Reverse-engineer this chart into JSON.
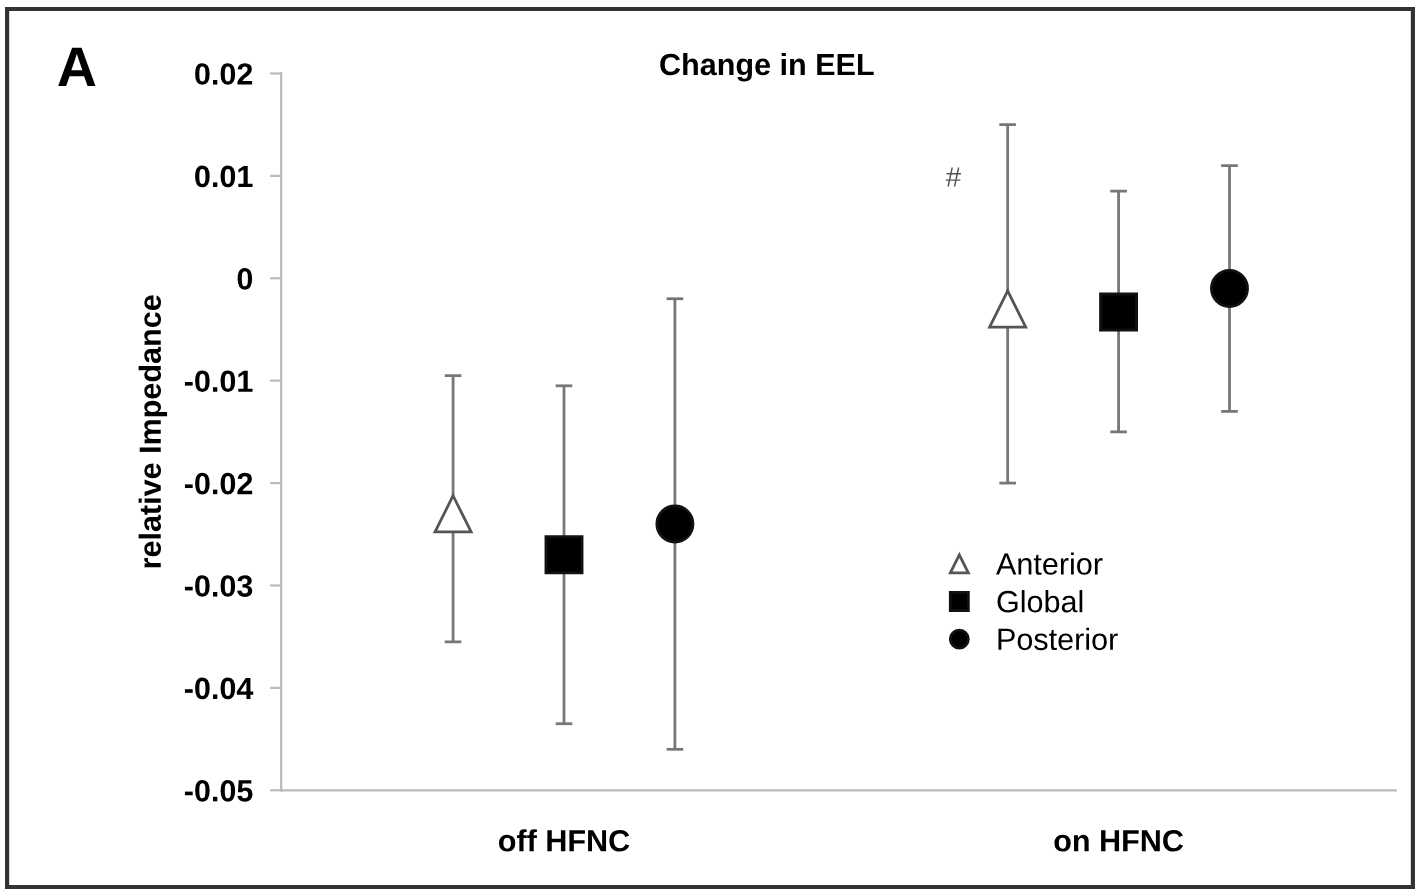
{
  "chart_data": {
    "type": "scatter",
    "title": "Change in EEL",
    "ylabel": "relative Impedance",
    "categories": [
      "off HFNC",
      "on HFNC"
    ],
    "series": [
      {
        "name": "Anterior",
        "color": "#ffffff",
        "marker": "triangle",
        "values": [
          -0.023,
          -0.003
        ],
        "errors": [
          [
            -0.0355,
            -0.0095
          ],
          [
            -0.02,
            0.015
          ]
        ]
      },
      {
        "name": "Global",
        "color": "#000000",
        "marker": "square",
        "values": [
          -0.027,
          -0.0033
        ],
        "errors": [
          [
            -0.0435,
            -0.0105
          ],
          [
            -0.015,
            0.0085
          ]
        ]
      },
      {
        "name": "Posterior",
        "color": "#000000",
        "marker": "circle",
        "values": [
          -0.024,
          -0.001
        ],
        "errors": [
          [
            -0.046,
            -0.002
          ],
          [
            -0.013,
            0.011
          ]
        ]
      }
    ],
    "ylim": [
      -0.05,
      0.02
    ],
    "yticks": [
      -0.05,
      -0.04,
      -0.03,
      -0.02,
      -0.01,
      0,
      0.01,
      0.02
    ],
    "grid": false,
    "legend": "bottom right",
    "annotations": [
      "A",
      "#"
    ]
  }
}
